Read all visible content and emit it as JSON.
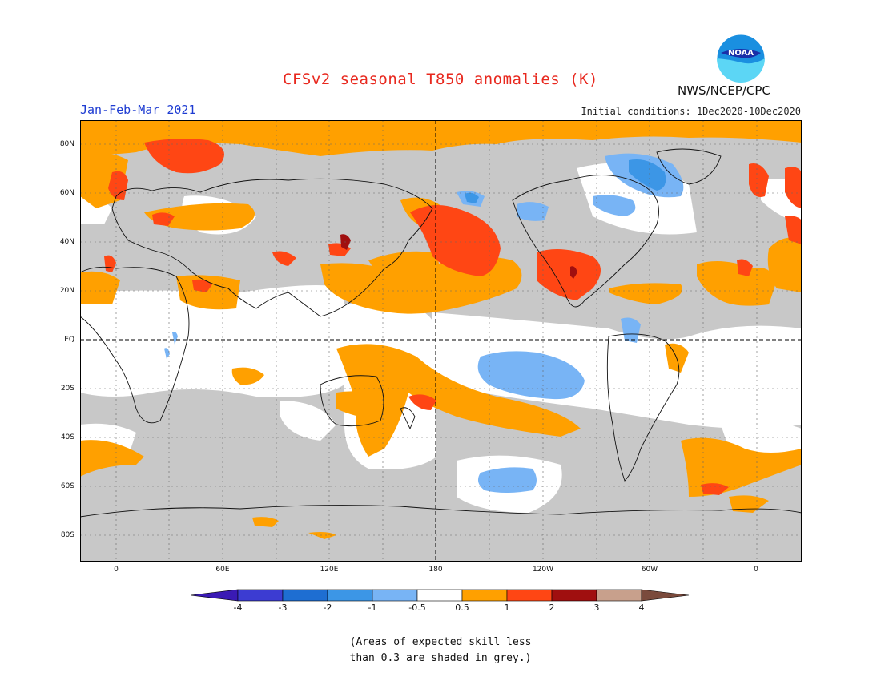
{
  "header": {
    "title": "CFSv2 seasonal T850 anomalies (K)",
    "season": "Jan-Feb-Mar 2021",
    "initial_conditions": "Initial conditions: 1Dec2020-10Dec2020",
    "agency": "NWS/NCEP/CPC",
    "logo_text": "NOAA"
  },
  "map": {
    "lat_labels": [
      "80N",
      "60N",
      "40N",
      "20N",
      "EQ",
      "20S",
      "40S",
      "60S",
      "80S"
    ],
    "lon_labels": [
      "0",
      "60E",
      "120E",
      "180",
      "120W",
      "60W",
      "0"
    ]
  },
  "colorbar": {
    "labels": [
      "-4",
      "-3",
      "-2",
      "-1",
      "-0.5",
      "0.5",
      "1",
      "2",
      "3",
      "4"
    ],
    "colors": [
      "#3a1ab4",
      "#3c3cd2",
      "#1e6ed2",
      "#3c96e6",
      "#78b4f5",
      "#ffffff",
      "#ffa000",
      "#ff4614",
      "#a00f0f",
      "#c8a08c",
      "#7a4a3c"
    ],
    "grey": "#c8c8c8"
  },
  "note": {
    "line1": "(Areas of expected skill less",
    "line2": "than 0.3 are shaded in grey.)"
  }
}
